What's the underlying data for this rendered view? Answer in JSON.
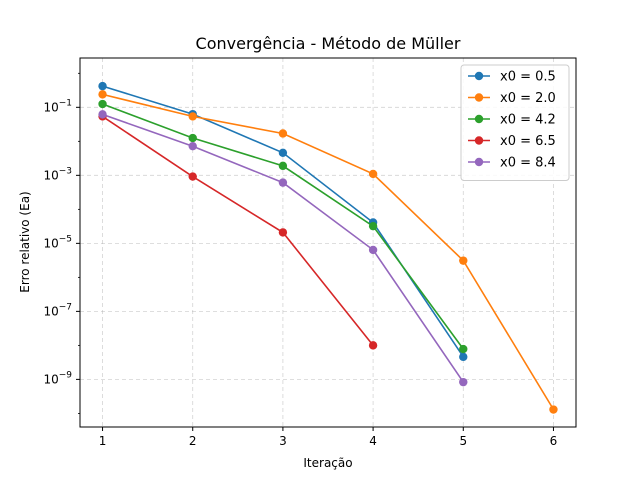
{
  "chart_data": {
    "type": "line",
    "title": "Convergência - Método de Müller",
    "xlabel": "Iteração",
    "ylabel": "Erro relativo (Ea)",
    "yscale": "log",
    "xlim": [
      0.75,
      6.25
    ],
    "ylim_log10": [
      -10.4,
      0.45
    ],
    "x_ticks": [
      1,
      2,
      3,
      4,
      5,
      6
    ],
    "y_ticks": [
      {
        "exp": -9,
        "base": "10",
        "sup": "−9"
      },
      {
        "exp": -7,
        "base": "10",
        "sup": "−7"
      },
      {
        "exp": -5,
        "base": "10",
        "sup": "−5"
      },
      {
        "exp": -3,
        "base": "10",
        "sup": "−3"
      },
      {
        "exp": -1,
        "base": "10",
        "sup": "−1"
      }
    ],
    "grid": true,
    "legend_position": "top-right",
    "series": [
      {
        "name": "x0 = 0.5",
        "color": "#1f77b4",
        "x": [
          1,
          2,
          3,
          4,
          5
        ],
        "y": [
          0.42,
          0.063,
          0.0046,
          4.1e-05,
          4.6e-09
        ]
      },
      {
        "name": "x0 = 2.0",
        "color": "#ff7f0e",
        "x": [
          1,
          2,
          3,
          4,
          5,
          6
        ],
        "y": [
          0.24,
          0.054,
          0.017,
          0.0011,
          3.1e-06,
          1.3e-10
        ]
      },
      {
        "name": "x0 = 4.2",
        "color": "#2ca02c",
        "x": [
          1,
          2,
          3,
          4,
          5
        ],
        "y": [
          0.125,
          0.0125,
          0.0019,
          3.2e-05,
          7.8e-09
        ]
      },
      {
        "name": "x0 = 6.5",
        "color": "#d62728",
        "x": [
          1,
          2,
          3,
          4
        ],
        "y": [
          0.054,
          0.00092,
          2.1e-05,
          1e-08
        ]
      },
      {
        "name": "x0 = 8.4",
        "color": "#9467bd",
        "x": [
          1,
          2,
          3,
          4,
          5
        ],
        "y": [
          0.062,
          0.0072,
          0.00061,
          6.4e-06,
          8.3e-10
        ]
      }
    ]
  }
}
